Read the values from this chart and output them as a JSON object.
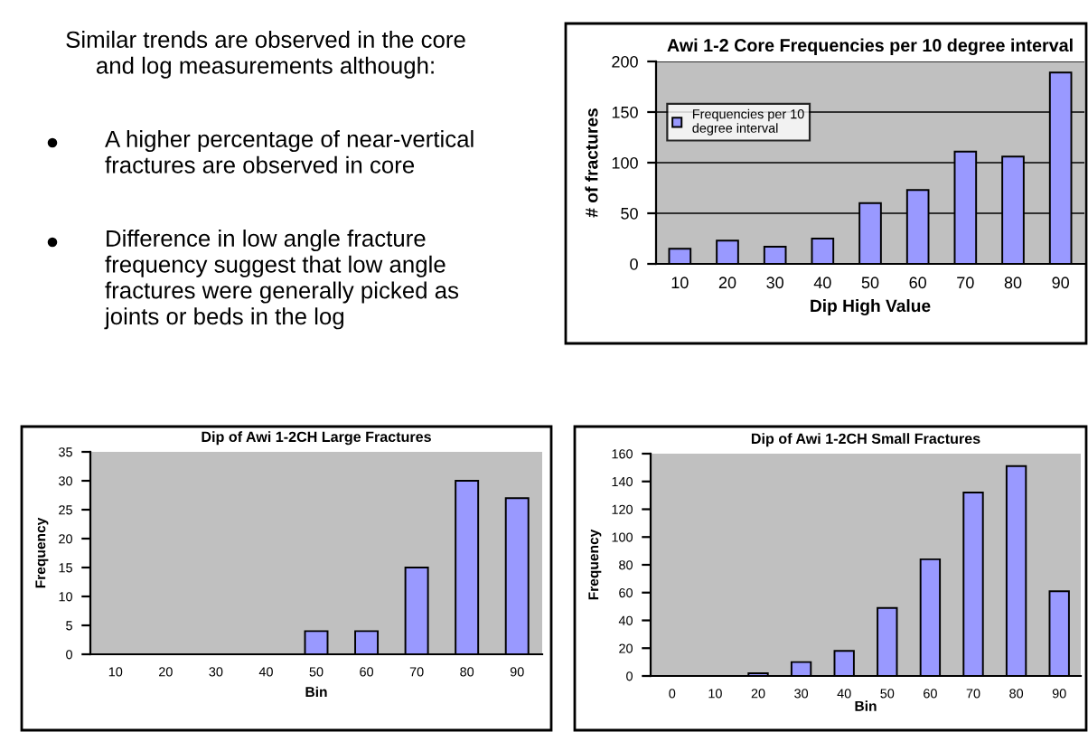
{
  "chart_data": [
    {
      "type": "other",
      "title": "Similar trends are observed in the core\nand log measurements although:",
      "annotations": [
        "A higher percentage of near-vertical\nfractures are observed in core",
        "Difference in low angle fracture\nfrequency suggest that low angle\nfractures were generally picked as\njoints or beds in the log"
      ]
    },
    {
      "type": "bar",
      "title": "Awi 1-2 Core Frequencies per 10 degree interval",
      "xlabel": "Dip High Value",
      "ylabel": "# of fractures",
      "categories": [
        "10",
        "20",
        "30",
        "40",
        "50",
        "60",
        "70",
        "80",
        "90"
      ],
      "series": [
        {
          "name": "Frequencies per 10\ndegree interval",
          "color": "#9999ff",
          "values": [
            15,
            23,
            17,
            25,
            60,
            73,
            111,
            106,
            189
          ]
        }
      ],
      "ylim": [
        0,
        200
      ],
      "yticks": [
        0,
        50,
        100,
        150,
        200
      ],
      "grid": "y",
      "legend": "left"
    },
    {
      "type": "bar",
      "title": "Dip of Awi 1-2CH Large Fractures",
      "xlabel": "Bin",
      "ylabel": "Frequency",
      "categories": [
        "10",
        "20",
        "30",
        "40",
        "50",
        "60",
        "70",
        "80",
        "90"
      ],
      "series": [
        {
          "color": "#9999ff",
          "values": [
            0,
            0,
            0,
            0,
            4,
            4,
            15,
            30,
            27
          ]
        }
      ],
      "ylim": [
        0,
        35
      ],
      "yticks": [
        0,
        5,
        10,
        15,
        20,
        25,
        30,
        35
      ]
    },
    {
      "type": "bar",
      "title": "Dip of Awi 1-2CH Small Fractures",
      "xlabel": "Bin",
      "ylabel": "Frequency",
      "categories": [
        "0",
        "10",
        "20",
        "30",
        "40",
        "50",
        "60",
        "70",
        "80",
        "90"
      ],
      "series": [
        {
          "color": "#9999ff",
          "values": [
            0,
            0,
            2,
            10,
            18,
            49,
            84,
            132,
            151,
            61
          ]
        }
      ],
      "ylim": [
        0,
        160
      ],
      "yticks": [
        0,
        20,
        40,
        60,
        80,
        100,
        120,
        140,
        160
      ]
    }
  ]
}
